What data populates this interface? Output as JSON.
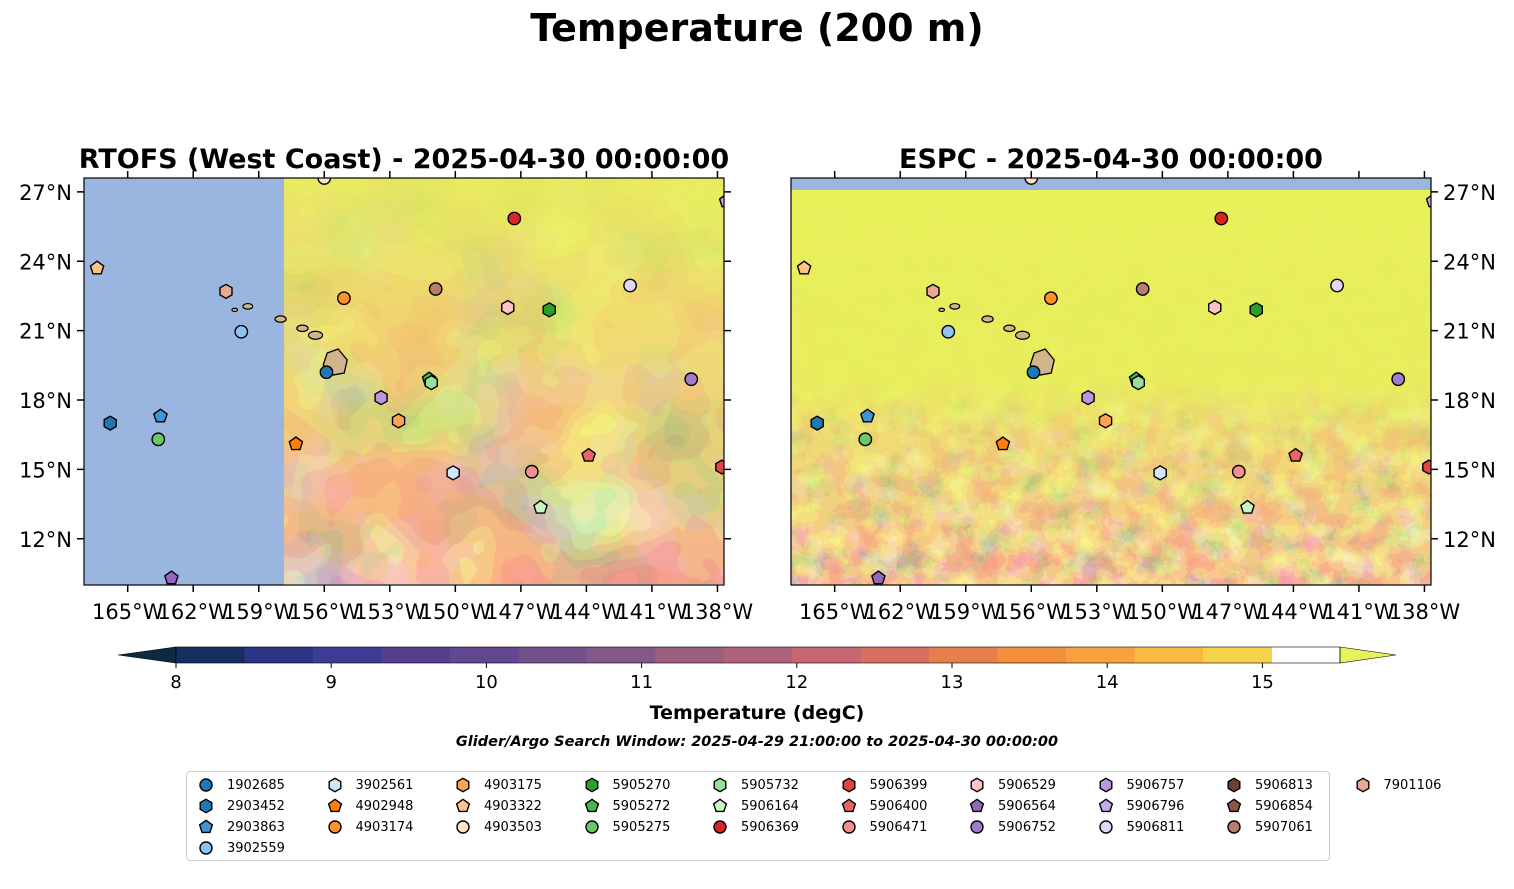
{
  "figure": {
    "title": "Temperature (200 m)",
    "search_window": "Glider/Argo Search Window: 2025-04-29 21:00:00 to 2025-04-30 00:00:00"
  },
  "panels": [
    {
      "id": "rtofs",
      "title": "RTOFS (West Coast) - 2025-04-30 00:00:00"
    },
    {
      "id": "espc",
      "title": "ESPC - 2025-04-30 00:00:00"
    }
  ],
  "map": {
    "lon_ticks": [
      "165°W",
      "162°W",
      "159°W",
      "156°W",
      "153°W",
      "150°W",
      "147°W",
      "144°W",
      "141°W",
      "138°W"
    ],
    "lat_ticks": [
      "27°N",
      "24°N",
      "21°N",
      "18°N",
      "15°N",
      "12°N"
    ],
    "land_color": "#d2b48c",
    "nodata_color": "#9ab6e0"
  },
  "colorbar": {
    "label": "Temperature (degC)",
    "ticks": [
      "8",
      "9",
      "10",
      "11",
      "12",
      "13",
      "14",
      "15"
    ],
    "colors": [
      "#0e2a40",
      "#162f5f",
      "#2a3585",
      "#3e3b95",
      "#52408f",
      "#634891",
      "#73508c",
      "#845889",
      "#9b5f82",
      "#b0627c",
      "#c56872",
      "#d7705f",
      "#e77f4d",
      "#f48f3d",
      "#f8a23f",
      "#fab942",
      "#f6d34a",
      "#e8f05a"
    ]
  },
  "chart_data": {
    "type": "scatter",
    "description_units": "lon (degrees East, negative = West), lat (degrees North)",
    "xlim": [
      -167,
      -137.7
    ],
    "ylim": [
      10,
      27.6
    ],
    "floats": [
      {
        "id": "1902685",
        "shape": "circle",
        "color": "#1f77b4",
        "lon": -155.9,
        "lat": 19.2
      },
      {
        "id": "2903452",
        "shape": "hexagon",
        "color": "#1f77b4",
        "lon": -165.8,
        "lat": 17.0
      },
      {
        "id": "2903863",
        "shape": "pentagon",
        "color": "#3f95d7",
        "lon": -163.5,
        "lat": 17.3
      },
      {
        "id": "3902559",
        "shape": "circle",
        "color": "#8ec4f0",
        "lon": -159.8,
        "lat": 20.95
      },
      {
        "id": "3902561",
        "shape": "hexagon",
        "color": "#cfe8f8",
        "lon": -150.1,
        "lat": 14.85
      },
      {
        "id": "4902948",
        "shape": "pentagon",
        "color": "#ff7f0e",
        "lon": -157.3,
        "lat": 16.1
      },
      {
        "id": "4903174",
        "shape": "circle",
        "color": "#ff902b",
        "lon": -155.1,
        "lat": 22.4
      },
      {
        "id": "4903175",
        "shape": "hexagon",
        "color": "#ffa552",
        "lon": -152.6,
        "lat": 17.1
      },
      {
        "id": "4903322",
        "shape": "pentagon",
        "color": "#ffc38a",
        "lon": -166.4,
        "lat": 23.7
      },
      {
        "id": "4903503",
        "shape": "circle",
        "color": "#ffe3c8",
        "lon": -156.0,
        "lat": 27.6
      },
      {
        "id": "5905270",
        "shape": "hexagon",
        "color": "#2ca02c",
        "lon": -145.7,
        "lat": 21.9
      },
      {
        "id": "5905272",
        "shape": "pentagon",
        "color": "#49b749",
        "lon": -151.2,
        "lat": 18.9
      },
      {
        "id": "5905275",
        "shape": "circle",
        "color": "#68c868",
        "lon": -163.6,
        "lat": 16.3
      },
      {
        "id": "5905732",
        "shape": "hexagon",
        "color": "#98e098",
        "lon": -151.1,
        "lat": 18.75
      },
      {
        "id": "5906164",
        "shape": "pentagon",
        "color": "#c8f5c2",
        "lon": -146.1,
        "lat": 13.35
      },
      {
        "id": "5906369",
        "shape": "circle",
        "color": "#d62728",
        "lon": -147.3,
        "lat": 25.85
      },
      {
        "id": "5906399",
        "shape": "hexagon",
        "color": "#e04545",
        "lon": -137.8,
        "lat": 15.1
      },
      {
        "id": "5906400",
        "shape": "pentagon",
        "color": "#e86565",
        "lon": -143.9,
        "lat": 15.6
      },
      {
        "id": "5906471",
        "shape": "circle",
        "color": "#f09090",
        "lon": -146.5,
        "lat": 14.9
      },
      {
        "id": "5906529",
        "shape": "hexagon",
        "color": "#fcc4c4",
        "lon": -147.6,
        "lat": 22.0
      },
      {
        "id": "5906564",
        "shape": "pentagon",
        "color": "#9467bd",
        "lon": -163.0,
        "lat": 10.3
      },
      {
        "id": "5906752",
        "shape": "circle",
        "color": "#a07ccc",
        "lon": -139.2,
        "lat": 18.9
      },
      {
        "id": "5906757",
        "shape": "hexagon",
        "color": "#b896e0",
        "lon": -153.4,
        "lat": 18.1
      },
      {
        "id": "5906796",
        "shape": "pentagon",
        "color": "#c8aaf0",
        "lon": -137.6,
        "lat": 26.6
      },
      {
        "id": "5906811",
        "shape": "circle",
        "color": "#e4d6fa",
        "lon": -142.0,
        "lat": 22.95
      },
      {
        "id": "5906813",
        "shape": "hexagon",
        "color": "#6b4232",
        "lon": null,
        "lat": null
      },
      {
        "id": "5906854",
        "shape": "pentagon",
        "color": "#8c564b",
        "lon": null,
        "lat": null
      },
      {
        "id": "5907061",
        "shape": "circle",
        "color": "#b87c70",
        "lon": -150.9,
        "lat": 22.8
      },
      {
        "id": "7901106",
        "shape": "hexagon",
        "color": "#e8a896",
        "lon": -160.5,
        "lat": 22.7
      }
    ]
  }
}
